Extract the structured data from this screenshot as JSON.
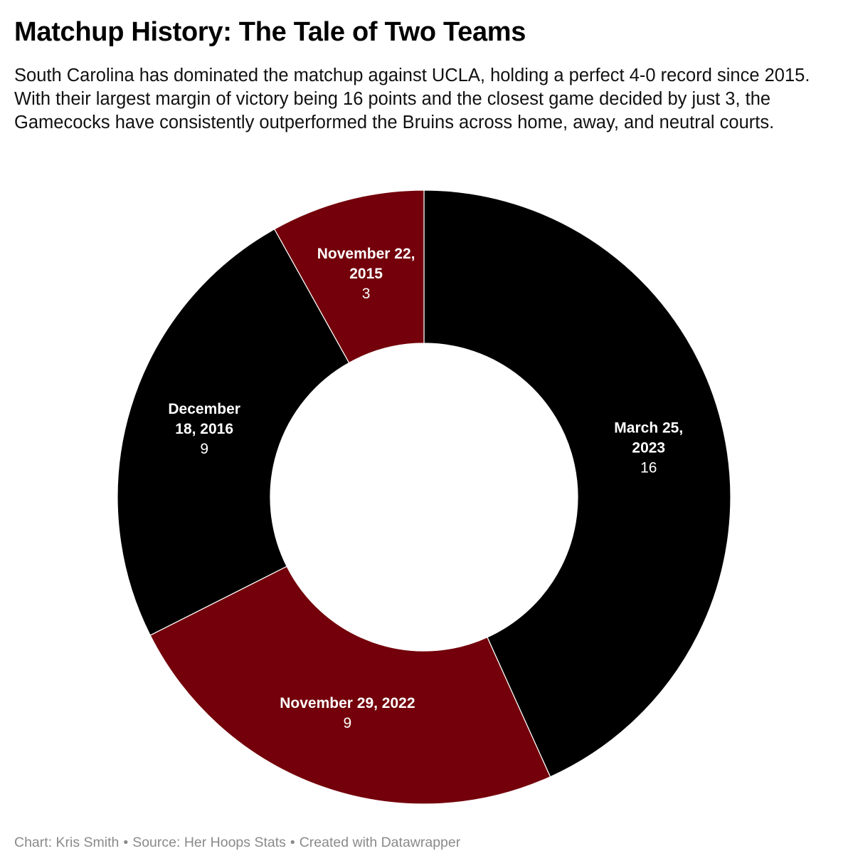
{
  "title": "Matchup History: The Tale of Two Teams",
  "subtitle": "South Carolina has dominated the matchup against UCLA, holding a perfect 4-0 record since 2015. With their largest margin of victory being 16 points and the closest game decided by just 3, the Gamecocks have consistently outperformed the Bruins across home, away, and neutral courts.",
  "footer": {
    "chart_by": "Chart: Kris Smith",
    "separator": "•",
    "source": "Source: Her Hoops Stats",
    "created_with": "Created with Datawrapper"
  },
  "colors": {
    "black": "#000000",
    "garnet": "#73000a",
    "footer_gray": "#8a8a8a"
  },
  "chart_data": {
    "type": "pie",
    "variant": "donut",
    "start": "12 o'clock",
    "direction": "clockwise",
    "slices": [
      {
        "label": "March 25, 2023",
        "label_lines": [
          "March 25,",
          "2023"
        ],
        "value": 16,
        "color": "#000000"
      },
      {
        "label": "November 29, 2022",
        "label_lines": [
          "November 29, 2022"
        ],
        "value": 9,
        "color": "#73000a"
      },
      {
        "label": "December 18, 2016",
        "label_lines": [
          "December",
          "18, 2016"
        ],
        "value": 9,
        "color": "#000000"
      },
      {
        "label": "November 22, 2015",
        "label_lines": [
          "November 22,",
          "2015"
        ],
        "value": 3,
        "color": "#73000a"
      }
    ]
  }
}
